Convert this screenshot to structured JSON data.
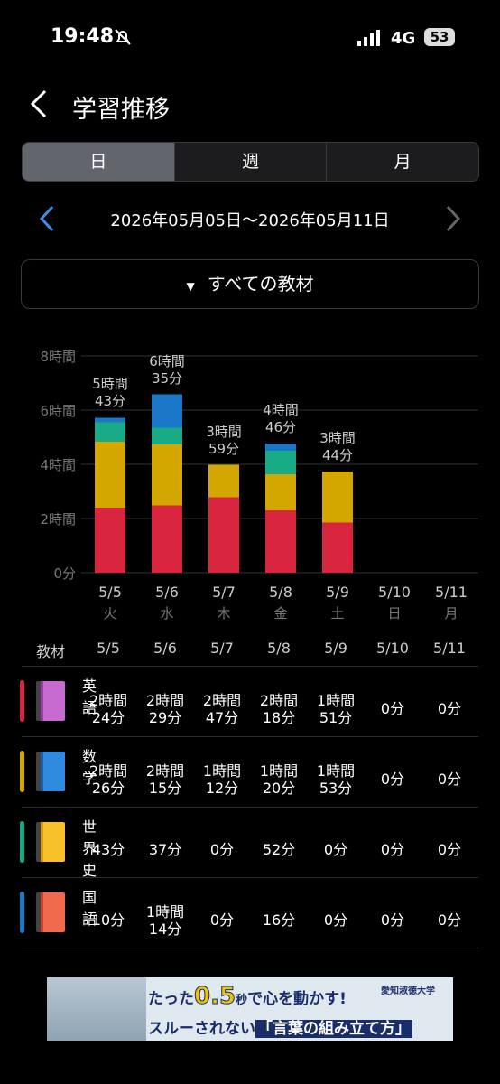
{
  "status_bar": {
    "time": "19:48",
    "network": "4G",
    "battery": "53"
  },
  "header": {
    "title": "学習推移"
  },
  "tabs": [
    "日",
    "週",
    "月"
  ],
  "date_range": "2026年05月05日〜2026年05月11日",
  "filter": "すべての教材",
  "chart_data": {
    "type": "bar",
    "stacked": true,
    "categories": [
      "5/5",
      "5/6",
      "5/7",
      "5/8",
      "5/9",
      "5/10",
      "5/11"
    ],
    "weekdays": [
      "火",
      "水",
      "木",
      "金",
      "土",
      "日",
      "月"
    ],
    "ylim": [
      0,
      8
    ],
    "yticks": [
      {
        "value": 0,
        "label": "0分"
      },
      {
        "value": 2,
        "label": "2時間"
      },
      {
        "value": 4,
        "label": "4時間"
      },
      {
        "value": 6,
        "label": "6時間"
      },
      {
        "value": 8,
        "label": "8時間"
      }
    ],
    "grid": true,
    "series": [
      {
        "name": "英語",
        "color": "#d9263e",
        "values": [
          2.4,
          2.4833,
          2.7833,
          2.3,
          1.85,
          0,
          0
        ],
        "value_labels": [
          "2時間\n24分",
          "2時間\n29分",
          "2時間\n47分",
          "2時間\n18分",
          "1時間\n51分",
          "0分",
          "0分"
        ]
      },
      {
        "name": "数学",
        "color": "#d4a600",
        "values": [
          2.4333,
          2.25,
          1.2,
          1.3333,
          1.8833,
          0,
          0
        ],
        "value_labels": [
          "2時間\n26分",
          "2時間\n15分",
          "1時間\n12分",
          "1時間\n20分",
          "1時間\n53分",
          "0分",
          "0分"
        ]
      },
      {
        "name": "世界史",
        "color": "#19aa86",
        "values": [
          0.7167,
          0.6167,
          0,
          0.8667,
          0,
          0,
          0
        ],
        "value_labels": [
          "43分",
          "37分",
          "0分",
          "52分",
          "0分",
          "0分",
          "0分"
        ]
      },
      {
        "name": "国語",
        "color": "#1b78c9",
        "values": [
          0.1667,
          1.2333,
          0,
          0.2667,
          0,
          0,
          0
        ],
        "value_labels": [
          "10分",
          "1時間\n14分",
          "0分",
          "16分",
          "0分",
          "0分",
          "0分"
        ]
      }
    ],
    "totals": [
      5.7167,
      6.5833,
      3.9833,
      4.7667,
      3.7333,
      null,
      null
    ],
    "total_labels": [
      "5時間\n43分",
      "6時間\n35分",
      "3時間\n59分",
      "4時間\n46分",
      "3時間\n44分",
      null,
      null
    ]
  },
  "table": {
    "header": "教材"
  },
  "ad": {
    "line1_a": "たった",
    "line1_b": "0.5",
    "line1_c": "秒",
    "line1_d": "で心を動かす!",
    "brand": "愛知淑徳大学",
    "line2_a": "スルーされない",
    "line2_b": "「言葉の組み立て方」"
  }
}
